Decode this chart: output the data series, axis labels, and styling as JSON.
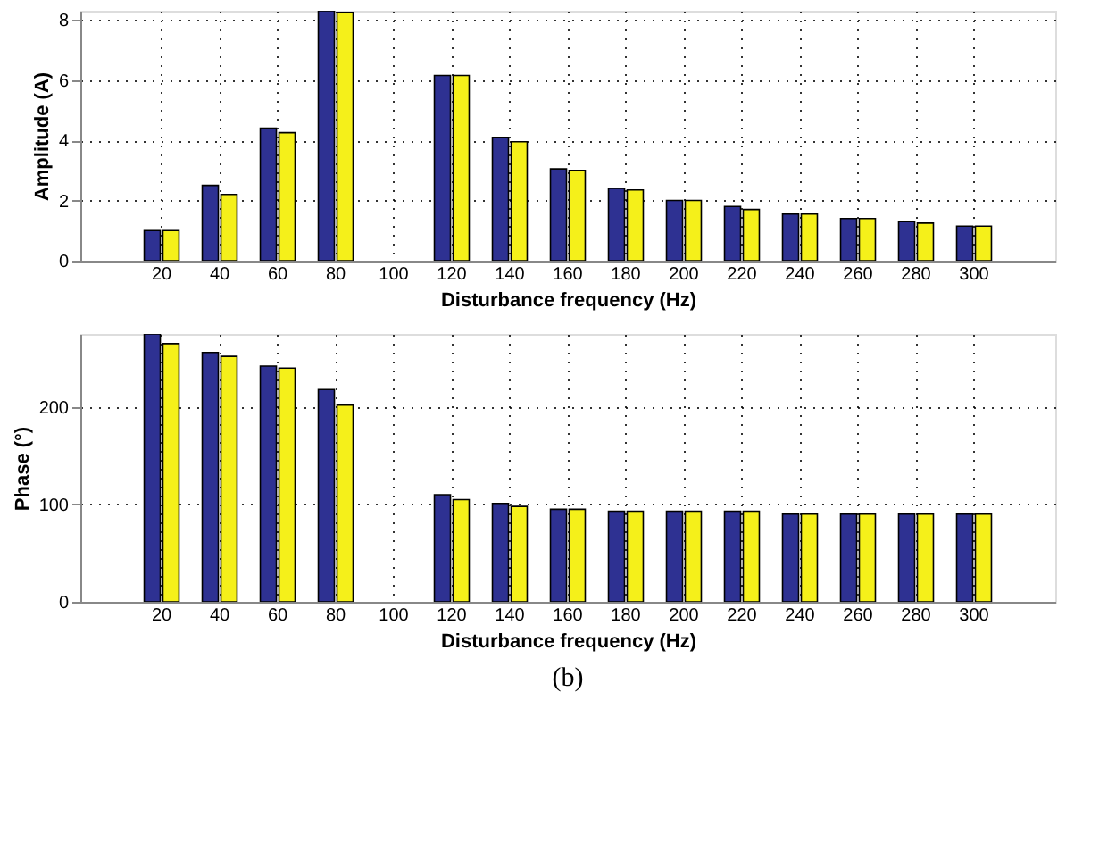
{
  "chart_data": [
    {
      "type": "bar",
      "xlabel": "Disturbance frequency (Hz)",
      "ylabel": "Amplitude (A)",
      "categories": [
        "20",
        "40",
        "60",
        "80",
        "100",
        "120",
        "140",
        "160",
        "180",
        "200",
        "220",
        "240",
        "260",
        "280",
        "300"
      ],
      "series": [
        {
          "color": "#2e3192",
          "values": [
            1.0,
            2.5,
            4.4,
            8.3,
            null,
            6.15,
            4.1,
            3.05,
            2.4,
            2.0,
            1.8,
            1.55,
            1.4,
            1.3,
            1.15
          ]
        },
        {
          "color": "#f5f01a",
          "values": [
            1.0,
            2.2,
            4.25,
            8.25,
            null,
            6.15,
            3.95,
            3.0,
            2.35,
            2.0,
            1.7,
            1.55,
            1.4,
            1.25,
            1.15
          ]
        }
      ],
      "ylim": [
        0,
        8.3
      ],
      "yticks": [
        0,
        2,
        4,
        6,
        8
      ],
      "grid": true,
      "legend": false
    },
    {
      "type": "bar",
      "xlabel": "Disturbance frequency (Hz)",
      "ylabel": "Phase (°)",
      "categories": [
        "20",
        "40",
        "60",
        "80",
        "100",
        "120",
        "140",
        "160",
        "180",
        "200",
        "220",
        "240",
        "260",
        "280",
        "300"
      ],
      "series": [
        {
          "color": "#2e3192",
          "values": [
            275,
            256,
            242,
            218,
            null,
            110,
            101,
            95,
            93,
            93,
            93,
            90,
            90,
            90,
            90
          ]
        },
        {
          "color": "#f5f01a",
          "values": [
            265,
            252,
            240,
            202,
            null,
            105,
            98,
            95,
            93,
            93,
            93,
            90,
            90,
            90,
            90
          ]
        }
      ],
      "ylim": [
        0,
        275
      ],
      "yticks": [
        0,
        100,
        200
      ],
      "grid": true,
      "legend": false,
      "annotations": [
        "(b)"
      ]
    }
  ]
}
